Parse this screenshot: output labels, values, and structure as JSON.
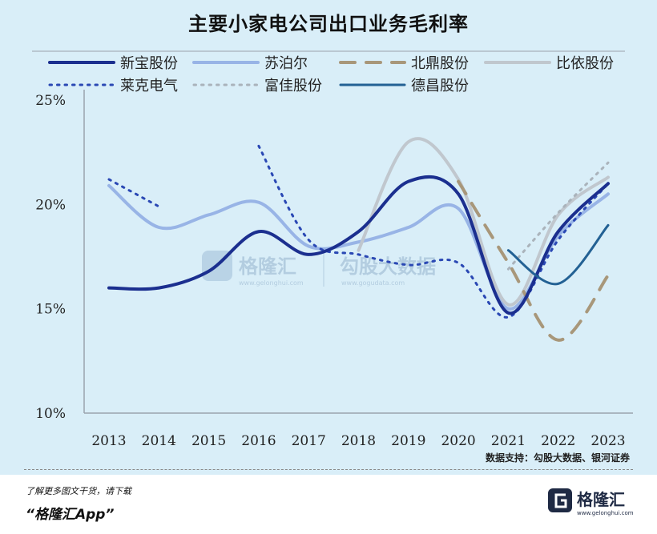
{
  "title": "主要小家电公司出口业务毛利率",
  "source": "数据支持：勾股大数据、银河证券",
  "footer": {
    "note": "了解更多图文干货，请下载",
    "app": "“格隆汇App”",
    "brand": "格隆汇",
    "brand_sub": "www.gelonghui.com"
  },
  "watermark": {
    "left_text": "格隆汇",
    "left_sub": "www.gelonghui.com",
    "right_text": "勾股大数据",
    "right_sub": "www.gogudata.com"
  },
  "colors": {
    "background": "#d9eef8",
    "accent": "#1f3f8f"
  },
  "chart_data": {
    "type": "line",
    "title": "主要小家电公司出口业务毛利率",
    "categories": [
      "2013",
      "2014",
      "2015",
      "2016",
      "2017",
      "2018",
      "2019",
      "2020",
      "2021",
      "2022",
      "2023"
    ],
    "yticks": [
      "25%",
      "20%",
      "15%",
      "10%"
    ],
    "ylim": [
      10,
      25
    ],
    "grid": false,
    "legend_position": "top",
    "series": [
      {
        "name": "新宝股份",
        "color": "#1b2f8f",
        "dash": "solid",
        "width": 4,
        "values": [
          16.0,
          16.0,
          16.8,
          18.7,
          17.6,
          18.7,
          21.1,
          20.5,
          14.8,
          18.7,
          21.0
        ]
      },
      {
        "name": "苏泊尔",
        "color": "#98b4e6",
        "dash": "solid",
        "width": 4,
        "values": [
          20.9,
          18.9,
          19.5,
          20.1,
          18.0,
          18.2,
          18.9,
          19.8,
          15.0,
          18.5,
          20.5
        ]
      },
      {
        "name": "北鼎股份",
        "color": "#a8977a",
        "dash": "long",
        "width": 4,
        "values": [
          null,
          null,
          null,
          null,
          null,
          null,
          null,
          21.1,
          17.2,
          13.5,
          16.6
        ]
      },
      {
        "name": "比依股份",
        "color": "#c0c7ce",
        "dash": "solid",
        "width": 4,
        "values": [
          null,
          null,
          null,
          null,
          null,
          17.8,
          23.0,
          21.2,
          15.2,
          19.5,
          21.3
        ]
      },
      {
        "name": "莱克电气",
        "color": "#2a48b4",
        "dash": "dot",
        "width": 3,
        "values": [
          21.2,
          19.9,
          null,
          22.8,
          18.3,
          17.6,
          17.1,
          17.2,
          14.6,
          18.3,
          21.0
        ]
      },
      {
        "name": "富佳股份",
        "color": "#aab3bb",
        "dash": "dot",
        "width": 3,
        "values": [
          null,
          null,
          null,
          null,
          null,
          null,
          null,
          null,
          16.9,
          19.6,
          22.0
        ]
      },
      {
        "name": "德昌股份",
        "color": "#236194",
        "dash": "solid",
        "width": 3,
        "values": [
          null,
          null,
          null,
          null,
          null,
          null,
          null,
          null,
          17.8,
          16.2,
          19.0
        ]
      }
    ]
  }
}
